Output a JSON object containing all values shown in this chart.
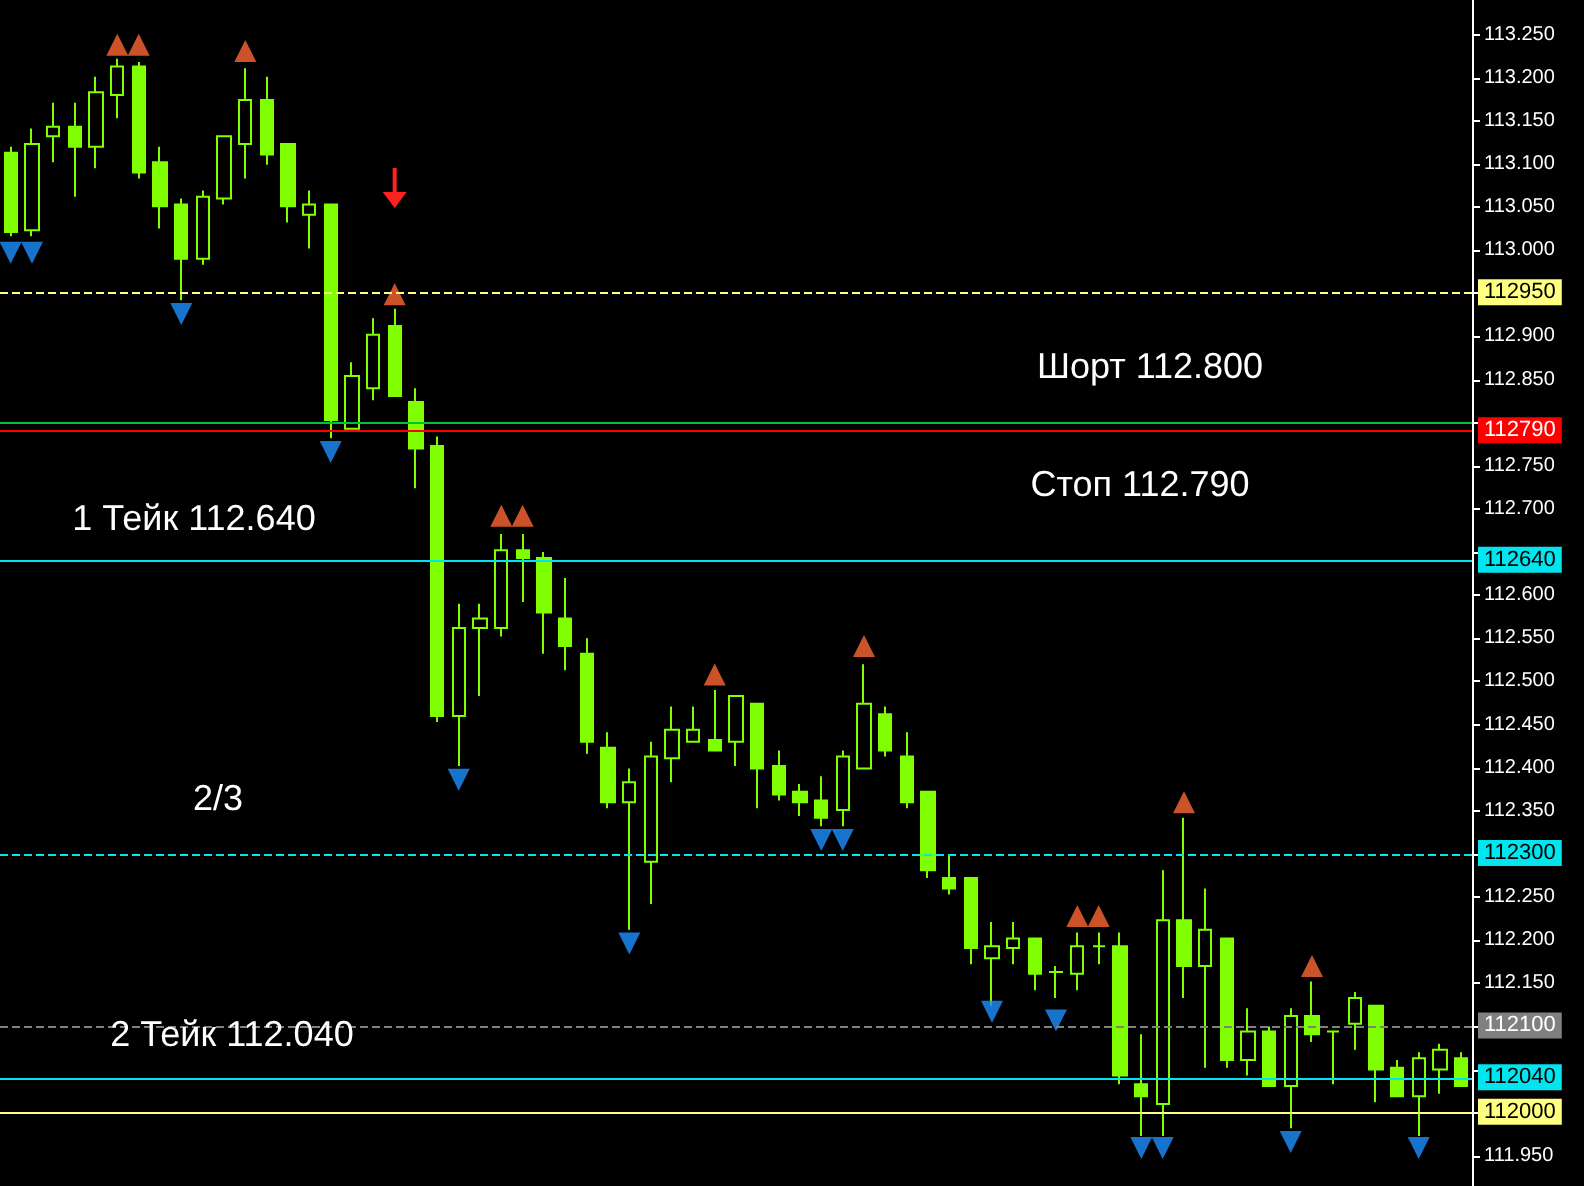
{
  "chart_data": {
    "type": "candlestick",
    "color": "#7fff00",
    "marker": "triangle",
    "tick_labels": "y",
    "categories": [
      null,
      null,
      null,
      null,
      null,
      null,
      null,
      null,
      null,
      null,
      null,
      null,
      null,
      null,
      null,
      null,
      null,
      null,
      null,
      null,
      null,
      null,
      null,
      null,
      null,
      null,
      null,
      null,
      null,
      null,
      null,
      null,
      null,
      null,
      null,
      null,
      null,
      null,
      null,
      null,
      null,
      null,
      null,
      null,
      null,
      null,
      null,
      null,
      null,
      null,
      null,
      null,
      null,
      null,
      null,
      null,
      null,
      null,
      null,
      null,
      null,
      null,
      null,
      null,
      null,
      null,
      null,
      null,
      null
    ],
    "ohlc": [
      [
        113.113,
        113.12,
        113.016,
        113.021
      ],
      [
        113.023,
        113.141,
        113.016,
        113.123
      ],
      [
        113.132,
        113.171,
        113.102,
        113.143
      ],
      [
        113.143,
        113.171,
        113.062,
        113.12
      ],
      [
        113.12,
        113.201,
        113.095,
        113.183
      ],
      [
        113.18,
        113.222,
        113.153,
        113.213
      ],
      [
        113.213,
        113.218,
        113.083,
        113.09
      ],
      [
        113.102,
        113.12,
        113.025,
        113.051
      ],
      [
        113.053,
        113.06,
        112.942,
        112.99
      ],
      [
        112.99,
        113.069,
        112.983,
        113.062
      ],
      [
        113.06,
        113.132,
        113.053,
        113.132
      ],
      [
        113.123,
        113.211,
        113.083,
        113.174
      ],
      [
        113.174,
        113.201,
        113.099,
        113.111
      ],
      [
        113.123,
        113.123,
        113.032,
        113.051
      ],
      [
        113.041,
        113.069,
        113.002,
        113.053
      ],
      [
        113.053,
        113.053,
        112.782,
        112.803
      ],
      [
        112.793,
        112.87,
        112.793,
        112.854
      ],
      [
        112.84,
        112.921,
        112.826,
        112.902
      ],
      [
        112.912,
        112.932,
        112.831,
        112.831
      ],
      [
        112.824,
        112.84,
        112.724,
        112.77
      ],
      [
        112.773,
        112.784,
        112.453,
        112.46
      ],
      [
        112.46,
        112.59,
        112.402,
        112.562
      ],
      [
        112.562,
        112.59,
        112.483,
        112.573
      ],
      [
        112.562,
        112.671,
        112.552,
        112.652
      ],
      [
        112.652,
        112.671,
        112.592,
        112.643
      ],
      [
        112.643,
        112.65,
        112.532,
        112.58
      ],
      [
        112.573,
        112.62,
        112.513,
        112.541
      ],
      [
        112.532,
        112.55,
        112.416,
        112.43
      ],
      [
        112.423,
        112.441,
        112.353,
        112.36
      ],
      [
        112.36,
        112.399,
        112.212,
        112.383
      ],
      [
        112.291,
        112.43,
        112.242,
        112.413
      ],
      [
        112.411,
        112.471,
        112.383,
        112.444
      ],
      [
        112.43,
        112.471,
        112.43,
        112.444
      ],
      [
        112.432,
        112.49,
        112.42,
        112.42
      ],
      [
        112.43,
        112.483,
        112.402,
        112.483
      ],
      [
        112.474,
        112.474,
        112.353,
        112.399
      ],
      [
        112.402,
        112.42,
        112.362,
        112.369
      ],
      [
        112.372,
        112.381,
        112.344,
        112.36
      ],
      [
        112.362,
        112.39,
        112.332,
        112.342
      ],
      [
        112.351,
        112.42,
        112.332,
        112.413
      ],
      [
        112.399,
        112.52,
        112.399,
        112.474
      ],
      [
        112.462,
        112.471,
        112.413,
        112.42
      ],
      [
        112.413,
        112.441,
        112.353,
        112.36
      ],
      [
        112.372,
        112.372,
        112.272,
        112.281
      ],
      [
        112.272,
        112.3,
        112.253,
        112.26
      ],
      [
        112.272,
        112.272,
        112.172,
        112.191
      ],
      [
        112.179,
        112.221,
        112.124,
        112.193
      ],
      [
        112.191,
        112.221,
        112.172,
        112.202
      ],
      [
        112.202,
        112.202,
        112.142,
        112.161
      ],
      [
        112.163,
        112.17,
        112.133,
        112.163
      ],
      [
        112.161,
        112.209,
        112.142,
        112.193
      ],
      [
        112.193,
        112.209,
        112.172,
        112.193
      ],
      [
        112.193,
        112.209,
        112.033,
        112.043
      ],
      [
        112.033,
        112.091,
        111.973,
        112.019
      ],
      [
        112.01,
        112.281,
        111.973,
        112.223
      ],
      [
        112.223,
        112.342,
        112.133,
        112.17
      ],
      [
        112.17,
        112.26,
        112.052,
        112.212
      ],
      [
        112.202,
        112.202,
        112.052,
        112.061
      ],
      [
        112.061,
        112.121,
        112.043,
        112.094
      ],
      [
        112.094,
        112.1,
        112.031,
        112.031
      ],
      [
        112.031,
        112.121,
        111.982,
        112.112
      ],
      [
        112.112,
        112.152,
        112.082,
        112.091
      ],
      [
        112.094,
        112.094,
        112.033,
        112.094
      ],
      [
        112.103,
        112.14,
        112.073,
        112.133
      ],
      [
        112.124,
        112.124,
        112.012,
        112.05
      ],
      [
        112.052,
        112.061,
        112.019,
        112.019
      ],
      [
        112.019,
        112.07,
        111.973,
        112.063
      ],
      [
        112.05,
        112.08,
        112.022,
        112.073
      ],
      [
        112.063,
        112.07,
        112.031,
        112.031
      ]
    ],
    "series": [
      {
        "type": "scatter",
        "color": "#ff6633",
        "values": [
          null,
          null,
          null,
          null,
          null,
          113.238,
          113.238,
          null,
          null,
          null,
          null,
          113.231,
          null,
          null,
          null,
          null,
          null,
          null,
          112.949,
          null,
          null,
          null,
          null,
          112.692,
          112.692,
          null,
          null,
          null,
          null,
          null,
          null,
          null,
          null,
          112.508,
          null,
          null,
          null,
          null,
          null,
          null,
          112.541,
          null,
          null,
          null,
          null,
          null,
          null,
          null,
          null,
          null,
          112.228,
          112.228,
          null,
          null,
          null,
          112.36,
          null,
          null,
          null,
          null,
          null,
          112.17,
          null,
          null,
          null,
          null,
          null,
          null,
          null
        ]
      },
      {
        "type": "scatter",
        "color": "#1e90ff",
        "values": [
          112.997,
          112.997,
          null,
          null,
          null,
          null,
          null,
          null,
          112.926,
          null,
          null,
          null,
          null,
          null,
          null,
          112.766,
          null,
          null,
          null,
          null,
          null,
          112.386,
          null,
          null,
          null,
          null,
          null,
          null,
          null,
          112.196,
          null,
          null,
          null,
          null,
          null,
          null,
          null,
          null,
          112.316,
          112.316,
          null,
          null,
          null,
          null,
          null,
          null,
          112.117,
          null,
          null,
          112.107,
          null,
          null,
          null,
          111.959,
          111.959,
          null,
          null,
          null,
          null,
          null,
          111.966,
          null,
          null,
          null,
          null,
          null,
          111.959,
          null,
          null
        ]
      }
    ],
    "ylim": [
      111.915,
      113.29
    ],
    "yticks": [
      {
        "value": 113.25,
        "label": "113.250"
      },
      {
        "value": 113.2,
        "label": "113.200"
      },
      {
        "value": 113.15,
        "label": "113.150"
      },
      {
        "value": 113.1,
        "label": "113.100"
      },
      {
        "value": 113.05,
        "label": "113.050"
      },
      {
        "value": 113.0,
        "label": "113.000"
      },
      {
        "value": 112.95,
        "label": null
      },
      {
        "value": 112.9,
        "label": "112.900"
      },
      {
        "value": 112.85,
        "label": "112.850"
      },
      {
        "value": 112.8,
        "label": null
      },
      {
        "value": 112.75,
        "label": "112.750"
      },
      {
        "value": 112.7,
        "label": "112.700"
      },
      {
        "value": 112.65,
        "label": null
      },
      {
        "value": 112.6,
        "label": "112.600"
      },
      {
        "value": 112.55,
        "label": "112.550"
      },
      {
        "value": 112.5,
        "label": "112.500"
      },
      {
        "value": 112.45,
        "label": "112.450"
      },
      {
        "value": 112.4,
        "label": "112.400"
      },
      {
        "value": 112.35,
        "label": "112.350"
      },
      {
        "value": 112.3,
        "label": null
      },
      {
        "value": 112.25,
        "label": "112.250"
      },
      {
        "value": 112.2,
        "label": "112.200"
      },
      {
        "value": 112.15,
        "label": "112.150"
      },
      {
        "value": 112.1,
        "label": null
      },
      {
        "value": 112.05,
        "label": null
      },
      {
        "value": 112.0,
        "label": null
      },
      {
        "value": 111.95,
        "label": "111.950"
      }
    ],
    "ref_lines": [
      {
        "axis": "y",
        "value": 112.95,
        "label": "112950",
        "color": "#ffff80",
        "line_style": "dashed"
      },
      {
        "axis": "y",
        "value": 112.8,
        "label": null,
        "color": "#00c040",
        "line_style": "solid"
      },
      {
        "axis": "y",
        "value": 112.79,
        "label": "112790",
        "color": "#ff0000",
        "line_style": "solid"
      },
      {
        "axis": "y",
        "value": 112.64,
        "label": "112640",
        "color": "#00e5ee",
        "line_style": "solid"
      },
      {
        "axis": "y",
        "value": 112.3,
        "label": "112300",
        "color": "#00e5ee",
        "line_style": "dashed"
      },
      {
        "axis": "y",
        "value": 112.1,
        "label": "112100",
        "color": "#808080",
        "line_style": "dashed"
      },
      {
        "axis": "y",
        "value": 112.04,
        "label": "112040",
        "color": "#00e5ee",
        "line_style": "solid"
      },
      {
        "axis": "y",
        "value": 112.0,
        "label": "112000",
        "color": "#ffff80",
        "line_style": "solid"
      }
    ],
    "annotations": [
      "Шорт 112.800",
      "Стоп 112.790",
      "1 Тейк 112.640",
      "2/3",
      "2 Тейк 112.040"
    ]
  }
}
